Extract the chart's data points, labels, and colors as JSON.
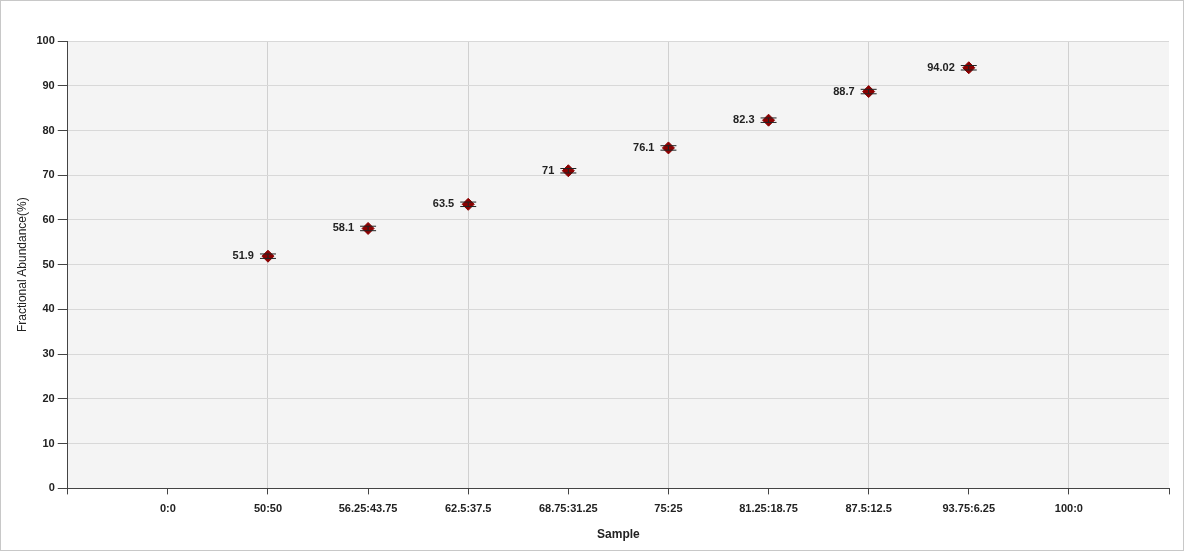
{
  "chart_data": {
    "type": "scatter",
    "xlabel": "Sample",
    "ylabel": "Fractional Abundance(%)",
    "categories": [
      null,
      "0:0",
      "50:50",
      "56.25:43.75",
      "62.5:37.5",
      "68.75:31.25",
      "75:25",
      "81.25:18.75",
      "87.5:12.5",
      "93.75:6.25",
      "100:0",
      null
    ],
    "values": [
      null,
      null,
      51.9,
      58.1,
      63.5,
      71,
      76.1,
      82.3,
      88.7,
      94.02,
      null,
      null
    ],
    "errors": [
      null,
      null,
      0.5,
      0.5,
      0.5,
      0.5,
      0.5,
      0.5,
      0.5,
      0.5,
      null,
      null
    ],
    "color": "#8b0000",
    "marker": "diamond",
    "data_labels": true,
    "grid": true,
    "legend": false,
    "ylim": [
      0,
      100
    ],
    "yticks": [
      0,
      10,
      20,
      30,
      40,
      50,
      60,
      70,
      80,
      90,
      100
    ]
  }
}
